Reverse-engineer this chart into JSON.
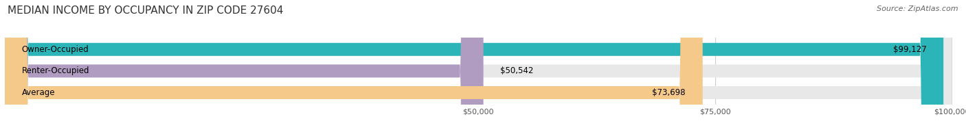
{
  "title": "MEDIAN INCOME BY OCCUPANCY IN ZIP CODE 27604",
  "source": "Source: ZipAtlas.com",
  "categories": [
    "Owner-Occupied",
    "Renter-Occupied",
    "Average"
  ],
  "values": [
    99127,
    50542,
    73698
  ],
  "labels": [
    "$99,127",
    "$50,542",
    "$73,698"
  ],
  "bar_colors": [
    "#2bb5b8",
    "#b09cc0",
    "#f5c98a"
  ],
  "bar_bg_color": "#e8e8e8",
  "xlim_min": 0,
  "xlim_max": 100000,
  "xticks": [
    50000,
    75000,
    100000
  ],
  "xticklabels": [
    "$50,000",
    "$75,000",
    "$100,000"
  ],
  "title_fontsize": 11,
  "source_fontsize": 8,
  "label_fontsize": 8.5,
  "cat_fontsize": 8.5,
  "background_color": "#ffffff"
}
